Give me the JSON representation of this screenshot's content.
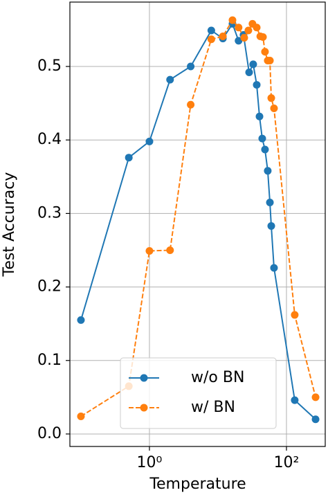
{
  "chart_data": {
    "type": "line",
    "xlabel": "Temperature",
    "ylabel": "Test Accuracy",
    "xscale": "log",
    "grid": true,
    "legend": "lower center",
    "xlim": [
      0.069,
      368
    ],
    "ylim": [
      -0.017,
      0.5876
    ],
    "xticks": [
      {
        "value": 1,
        "label": "10⁰"
      },
      {
        "value": 100,
        "label": "10²"
      }
    ],
    "yticks": [
      {
        "value": 0,
        "label": "0.0"
      },
      0.1,
      0.2,
      0.3,
      0.4,
      0.5
    ],
    "series": [
      {
        "name": "w/o BN",
        "color": "#1f77b4",
        "linestyle": "solid",
        "x": [
          0.1,
          0.5,
          1,
          2,
          4,
          8,
          11.8,
          16.3,
          20,
          23.6,
          28.5,
          32.7,
          36.8,
          40.4,
          44.3,
          48.6,
          53.3,
          57.3,
          60,
          65.8,
          132,
          266
        ],
        "values": [
          0.155,
          0.376,
          0.398,
          0.482,
          0.5,
          0.549,
          0.538,
          0.558,
          0.535,
          0.543,
          0.492,
          0.503,
          0.475,
          0.432,
          0.402,
          0.387,
          0.358,
          0.315,
          0.283,
          0.226,
          0.046,
          0.02
        ]
      },
      {
        "name": "w/ BN",
        "color": "#ff7f0e",
        "linestyle": "dashed",
        "x": [
          0.1,
          0.5,
          1,
          2,
          4,
          8,
          11.8,
          16.3,
          20,
          24.2,
          27.8,
          31.9,
          36.8,
          41.5,
          45.4,
          48.6,
          53.3,
          57.3,
          60,
          65.8,
          132,
          266
        ],
        "values": [
          0.024,
          0.065,
          0.249,
          0.25,
          0.448,
          0.537,
          0.541,
          0.563,
          0.553,
          0.539,
          0.549,
          0.558,
          0.553,
          0.541,
          0.54,
          0.52,
          0.508,
          0.508,
          0.457,
          0.443,
          0.162,
          0.05
        ]
      }
    ]
  }
}
